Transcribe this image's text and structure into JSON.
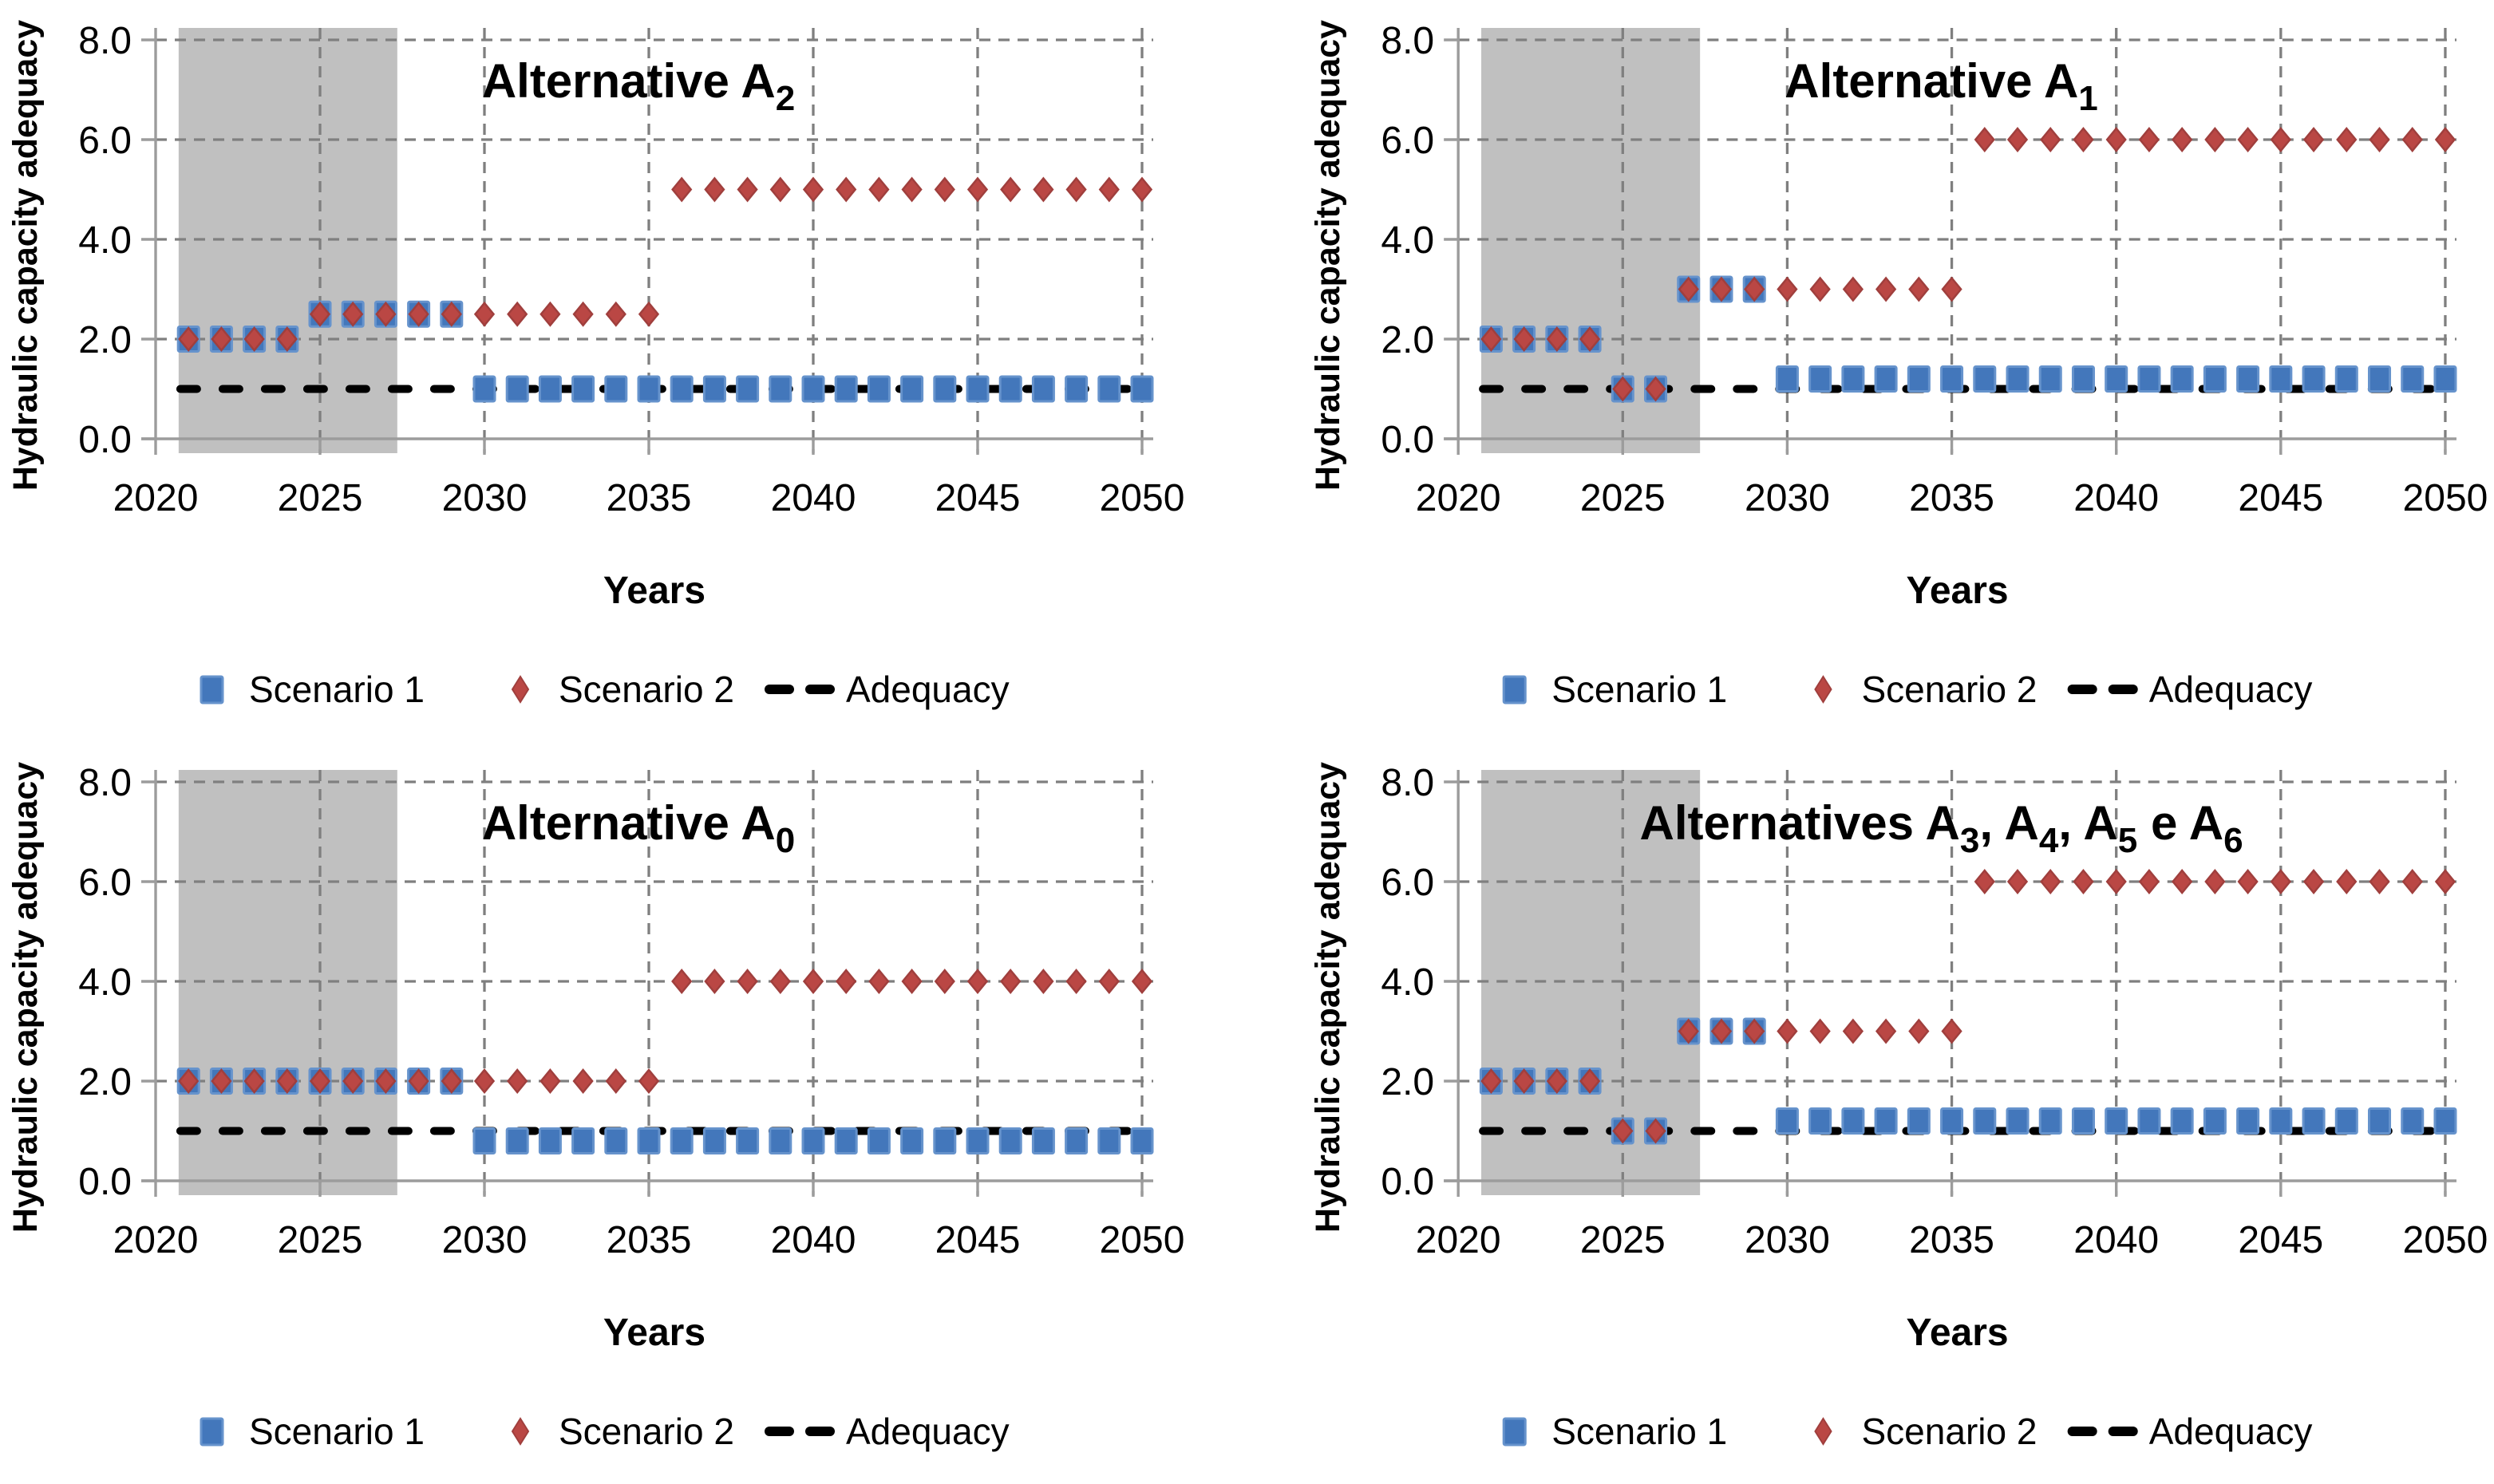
{
  "figure": {
    "background": "#FFFFFF",
    "description": "Four scatter charts comparing hydraulic capacity adequacy over years for different alternatives"
  },
  "colors": {
    "scenario1_fill": "#4377BB",
    "scenario1_border": "#6693CC",
    "scenario2_fill": "#BA4744",
    "scenario2_border": "#A03F3D",
    "adequacy_line": "#000000",
    "gridline": "#7F7F7F",
    "axis_line": "#9C9C9C",
    "shaded_band": "#C0C0C0",
    "text": "#000000"
  },
  "axes": {
    "xlabel": "Years",
    "ylabel": "Hydraulic capacity adequacy",
    "xticks": [
      2020,
      2025,
      2030,
      2035,
      2040,
      2045,
      2050
    ],
    "yticks": [
      0,
      2,
      4,
      6,
      8
    ],
    "ytick_labels": [
      "0.0",
      "2.0",
      "4.0",
      "6.0",
      "8.0"
    ],
    "xlim": [
      2020,
      2050.5
    ],
    "ylim": [
      0,
      8.2
    ],
    "grid": "dashed"
  },
  "shaded_region": {
    "from_year": 2020.7,
    "to_year": 2027.35
  },
  "legend": {
    "position": "bottom",
    "items": [
      {
        "label": "Scenario 1",
        "marker": "square"
      },
      {
        "label": "Scenario 2",
        "marker": "diamond"
      },
      {
        "label": "Adequacy",
        "marker": "dashed-line"
      }
    ]
  },
  "chart_data": [
    {
      "type": "scatter",
      "panel": "top-left",
      "title": "Alternative A2",
      "title_runs": [
        {
          "t": "Alternative A"
        },
        {
          "t": "2",
          "sub": true
        }
      ],
      "years": {
        "start": 2021,
        "end": 2050,
        "step": 1
      },
      "series": [
        {
          "name": "Scenario 1",
          "marker": "square",
          "segments": [
            {
              "from": 2021,
              "to": 2024,
              "value": 2.0
            },
            {
              "from": 2025,
              "to": 2029,
              "value": 2.5
            },
            {
              "from": 2030,
              "to": 2050,
              "value": 1.0
            }
          ]
        },
        {
          "name": "Scenario 2",
          "marker": "diamond",
          "segments": [
            {
              "from": 2021,
              "to": 2024,
              "value": 2.0
            },
            {
              "from": 2025,
              "to": 2035,
              "value": 2.5
            },
            {
              "from": 2036,
              "to": 2050,
              "value": 5.0
            }
          ]
        }
      ],
      "adequacy_value": 1.0
    },
    {
      "type": "scatter",
      "panel": "top-right",
      "title": "Alternative A1",
      "title_runs": [
        {
          "t": "Alternative A"
        },
        {
          "t": "1",
          "sub": true
        }
      ],
      "years": {
        "start": 2021,
        "end": 2050,
        "step": 1
      },
      "series": [
        {
          "name": "Scenario 1",
          "marker": "square",
          "segments": [
            {
              "from": 2021,
              "to": 2024,
              "value": 2.0
            },
            {
              "from": 2025,
              "to": 2026,
              "value": 1.0
            },
            {
              "from": 2027,
              "to": 2029,
              "value": 3.0
            },
            {
              "from": 2030,
              "to": 2050,
              "value": 1.2
            }
          ]
        },
        {
          "name": "Scenario 2",
          "marker": "diamond",
          "segments": [
            {
              "from": 2021,
              "to": 2024,
              "value": 2.0
            },
            {
              "from": 2025,
              "to": 2026,
              "value": 1.0
            },
            {
              "from": 2027,
              "to": 2035,
              "value": 3.0
            },
            {
              "from": 2036,
              "to": 2050,
              "value": 6.0
            }
          ]
        }
      ],
      "adequacy_value": 1.0
    },
    {
      "type": "scatter",
      "panel": "bottom-left",
      "title": "Alternative A0",
      "title_runs": [
        {
          "t": "Alternative A"
        },
        {
          "t": "0",
          "sub": true
        }
      ],
      "years": {
        "start": 2021,
        "end": 2050,
        "step": 1
      },
      "series": [
        {
          "name": "Scenario 1",
          "marker": "square",
          "segments": [
            {
              "from": 2021,
              "to": 2029,
              "value": 2.0
            },
            {
              "from": 2030,
              "to": 2050,
              "value": 0.8
            }
          ]
        },
        {
          "name": "Scenario 2",
          "marker": "diamond",
          "segments": [
            {
              "from": 2021,
              "to": 2035,
              "value": 2.0
            },
            {
              "from": 2036,
              "to": 2050,
              "value": 4.0
            }
          ]
        }
      ],
      "adequacy_value": 1.0
    },
    {
      "type": "scatter",
      "panel": "bottom-right",
      "title": "Alternatives A3, A4, A5 e A6",
      "title_runs": [
        {
          "t": "Alternatives A"
        },
        {
          "t": "3",
          "sub": true
        },
        {
          "t": ", A"
        },
        {
          "t": "4",
          "sub": true
        },
        {
          "t": ", A"
        },
        {
          "t": "5",
          "sub": true
        },
        {
          "t": " e A"
        },
        {
          "t": "6",
          "sub": true
        }
      ],
      "years": {
        "start": 2021,
        "end": 2050,
        "step": 1
      },
      "series": [
        {
          "name": "Scenario 1",
          "marker": "square",
          "segments": [
            {
              "from": 2021,
              "to": 2024,
              "value": 2.0
            },
            {
              "from": 2025,
              "to": 2026,
              "value": 1.0
            },
            {
              "from": 2027,
              "to": 2029,
              "value": 3.0
            },
            {
              "from": 2030,
              "to": 2050,
              "value": 1.2
            }
          ]
        },
        {
          "name": "Scenario 2",
          "marker": "diamond",
          "segments": [
            {
              "from": 2021,
              "to": 2024,
              "value": 2.0
            },
            {
              "from": 2025,
              "to": 2026,
              "value": 1.0
            },
            {
              "from": 2027,
              "to": 2035,
              "value": 3.0
            },
            {
              "from": 2036,
              "to": 2050,
              "value": 6.0
            }
          ]
        }
      ],
      "adequacy_value": 1.0
    }
  ]
}
